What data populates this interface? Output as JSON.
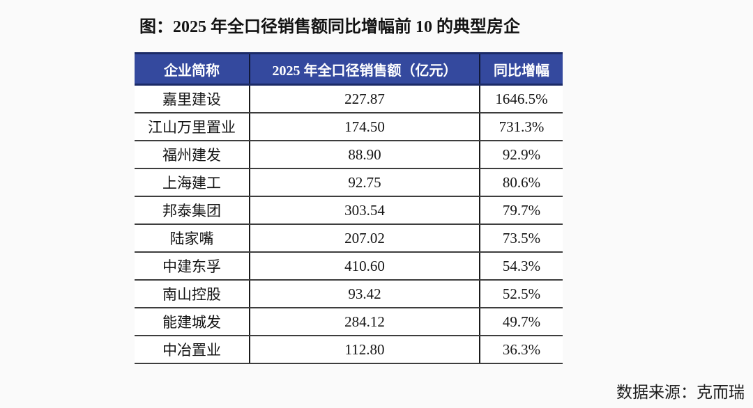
{
  "figure": {
    "title": "图：2025 年全口径销售额同比增幅前 10 的典型房企",
    "source_note": "数据来源：克而瑞"
  },
  "chart_data": {
    "type": "table",
    "title": "2025 年全口径销售额同比增幅前 10 的典型房企",
    "columns": [
      "企业简称",
      "2025 年全口径销售额（亿元）",
      "同比增幅"
    ],
    "rows": [
      [
        "嘉里建设",
        "227.87",
        "1646.5%"
      ],
      [
        "江山万里置业",
        "174.50",
        "731.3%"
      ],
      [
        "福州建发",
        "88.90",
        "92.9%"
      ],
      [
        "上海建工",
        "92.75",
        "80.6%"
      ],
      [
        "邦泰集团",
        "303.54",
        "79.7%"
      ],
      [
        "陆家嘴",
        "207.02",
        "73.5%"
      ],
      [
        "中建东孚",
        "410.60",
        "54.3%"
      ],
      [
        "南山控股",
        "93.42",
        "52.5%"
      ],
      [
        "能建城发",
        "284.12",
        "49.7%"
      ],
      [
        "中冶置业",
        "112.80",
        "36.3%"
      ]
    ],
    "source": "克而瑞"
  },
  "colors": {
    "header_bg": "#34499E",
    "header_text": "#FFFFFF",
    "row_border": "#3D3D3D",
    "column_border": "#1A1A1A",
    "text": "#141414",
    "page_bg": "#FAFAFA"
  }
}
